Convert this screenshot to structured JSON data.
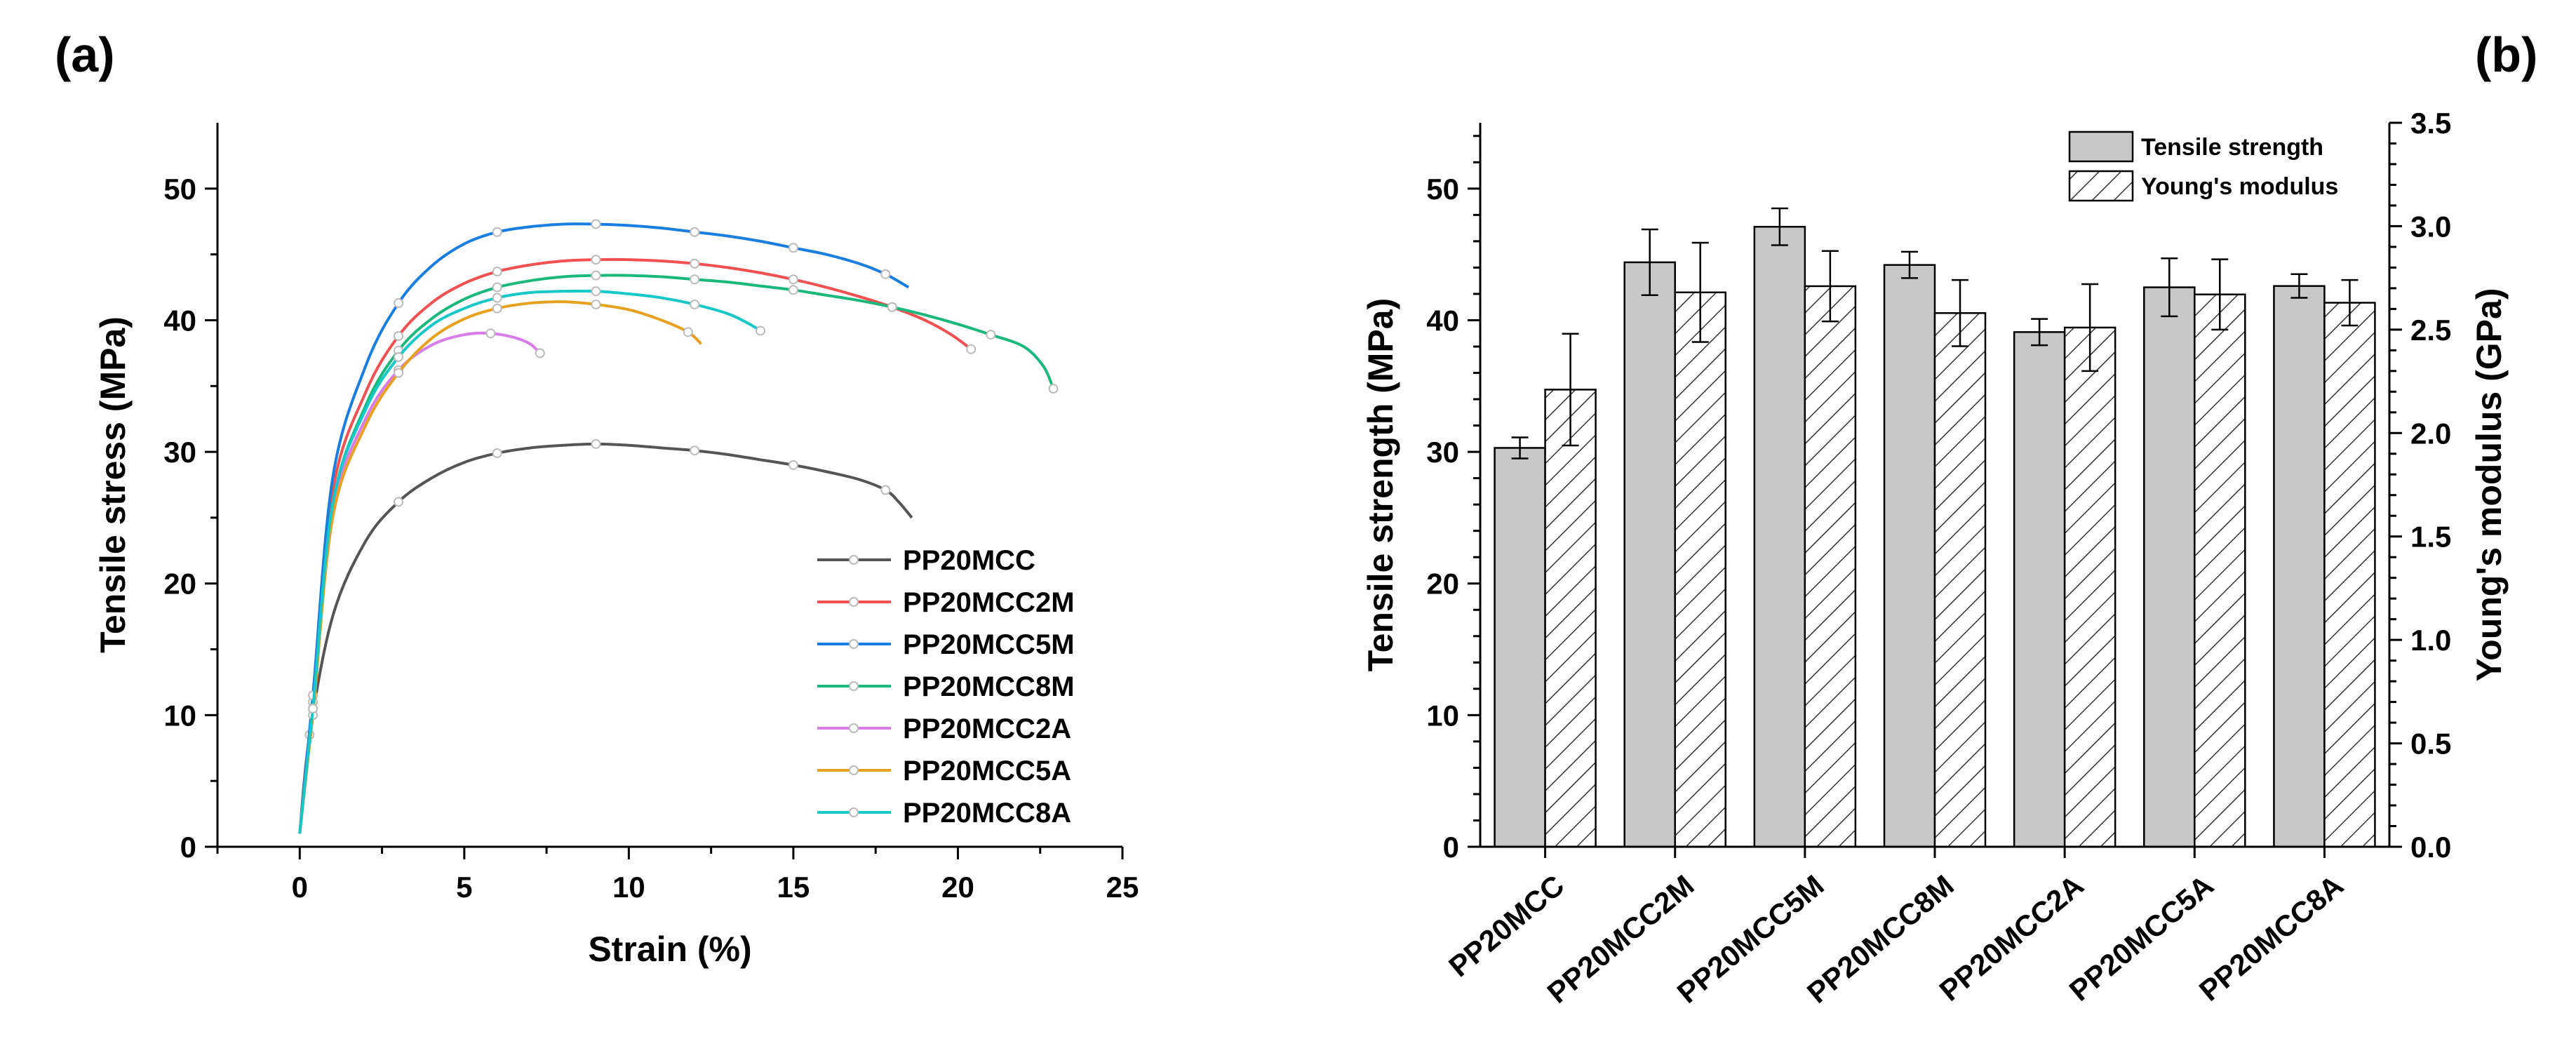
{
  "panel_a_label": "(a)",
  "panel_b_label": "(b)",
  "chart_data": [
    {
      "type": "line",
      "xlabel": "Strain (%)",
      "ylabel": "Tensile stress (MPa)",
      "xlim": [
        -2.5,
        25
      ],
      "ylim": [
        0,
        55
      ],
      "xticks": [
        0,
        5,
        10,
        15,
        20,
        25
      ],
      "yticks": [
        0,
        10,
        20,
        30,
        40,
        50
      ],
      "legend_position": "bottom-right",
      "series": [
        {
          "name": "PP20MCC",
          "color": "#555555",
          "x": [
            0,
            0.3,
            1,
            2,
            3,
            4,
            5,
            6,
            7,
            8,
            9,
            10,
            11,
            12,
            13,
            14,
            15,
            16,
            17,
            17.8,
            18.2,
            18.6
          ],
          "y": [
            1,
            8.5,
            17.5,
            23.2,
            26.2,
            28,
            29.2,
            29.9,
            30.3,
            30.5,
            30.6,
            30.5,
            30.3,
            30.1,
            29.8,
            29.4,
            29.0,
            28.5,
            27.9,
            27.1,
            26.2,
            25
          ]
        },
        {
          "name": "PP20MCC2M",
          "color": "#f05050",
          "x": [
            0,
            0.4,
            1,
            2,
            3,
            4,
            5,
            6,
            7,
            8,
            9,
            10,
            11,
            12,
            13,
            14,
            15,
            16,
            17,
            18,
            19,
            19.8,
            20.4
          ],
          "y": [
            1,
            11,
            27,
            34.5,
            38.8,
            41.3,
            42.8,
            43.7,
            44.2,
            44.5,
            44.6,
            44.6,
            44.5,
            44.3,
            44.0,
            43.6,
            43.1,
            42.5,
            41.8,
            41.0,
            40.0,
            38.9,
            37.8
          ]
        },
        {
          "name": "PP20MCC5M",
          "color": "#1a7ee0",
          "x": [
            0,
            0.4,
            1,
            2,
            3,
            4,
            5,
            6,
            7,
            8,
            9,
            10,
            11,
            12,
            13,
            14,
            15,
            16,
            17,
            17.8,
            18.5
          ],
          "y": [
            1,
            11.5,
            28,
            36.5,
            41.3,
            44.1,
            45.8,
            46.7,
            47.1,
            47.3,
            47.3,
            47.2,
            47.0,
            46.7,
            46.4,
            46.0,
            45.5,
            45.0,
            44.3,
            43.5,
            42.5
          ]
        },
        {
          "name": "PP20MCC8M",
          "color": "#1ab87a",
          "x": [
            0,
            0.4,
            1,
            2,
            3,
            4,
            5,
            6,
            7,
            8,
            9,
            10,
            11,
            12,
            13,
            14,
            15,
            16,
            17,
            18,
            19,
            20,
            21,
            22,
            22.6,
            22.9
          ],
          "y": [
            1,
            10.5,
            26,
            33.5,
            37.7,
            40.1,
            41.6,
            42.5,
            43.0,
            43.3,
            43.4,
            43.4,
            43.3,
            43.1,
            42.9,
            42.6,
            42.3,
            41.9,
            41.5,
            41.0,
            40.4,
            39.7,
            38.9,
            38.0,
            36.5,
            34.8
          ]
        },
        {
          "name": "PP20MCC2A",
          "color": "#d77ce8",
          "x": [
            0,
            0.4,
            1,
            2,
            3,
            4,
            5,
            5.8,
            6.5,
            7.0,
            7.3
          ],
          "y": [
            1,
            10.5,
            25.5,
            32.5,
            36.2,
            38.1,
            38.9,
            39.0,
            38.7,
            38.2,
            37.5
          ]
        },
        {
          "name": "PP20MCC5A",
          "color": "#e8a020",
          "x": [
            0,
            0.4,
            1,
            2,
            3,
            4,
            5,
            6,
            7,
            8,
            9,
            10,
            11,
            11.8,
            12.2
          ],
          "y": [
            1,
            10,
            25,
            32.0,
            36.0,
            38.6,
            40.1,
            40.9,
            41.3,
            41.4,
            41.2,
            40.8,
            40.0,
            39.1,
            38.2
          ]
        },
        {
          "name": "PP20MCC8A",
          "color": "#18c8c8",
          "x": [
            0,
            0.4,
            1,
            2,
            3,
            4,
            5,
            6,
            7,
            8,
            9,
            10,
            11,
            12,
            13,
            13.6,
            14.0
          ],
          "y": [
            1,
            10.5,
            26,
            33.2,
            37.2,
            39.6,
            40.9,
            41.7,
            42.1,
            42.2,
            42.2,
            42.0,
            41.7,
            41.2,
            40.5,
            39.8,
            39.2
          ]
        }
      ]
    },
    {
      "type": "bar",
      "categories": [
        "PP20MCC",
        "PP20MCC2M",
        "PP20MCC5M",
        "PP20MCC8M",
        "PP20MCC2A",
        "PP20MCC5A",
        "PP20MCC8A"
      ],
      "ylabel": "Tensile strength (MPa)",
      "y2label": "Young's modulus (GPa)",
      "ylim": [
        0,
        55
      ],
      "y2lim": [
        0,
        3.5
      ],
      "yticks": [
        0,
        10,
        20,
        30,
        40,
        50
      ],
      "y2ticks": [
        0.0,
        0.5,
        1.0,
        1.5,
        2.0,
        2.5,
        3.0,
        3.5
      ],
      "y2tick_labels": [
        "0.0",
        "0.5",
        "1.0",
        "1.5",
        "2.0",
        "2.5",
        "3.0",
        "3.5"
      ],
      "legend_position": "top-right",
      "series": [
        {
          "name": "Tensile strength",
          "axis": "left",
          "fill": "#c8c8c8",
          "values": [
            30.3,
            44.4,
            47.1,
            44.2,
            39.1,
            42.5,
            42.6
          ],
          "errors": [
            0.8,
            2.5,
            1.4,
            1.0,
            1.0,
            2.2,
            0.9
          ]
        },
        {
          "name": "Young's modulus",
          "axis": "right",
          "fill": "hatch",
          "values": [
            2.21,
            2.68,
            2.71,
            2.58,
            2.51,
            2.67,
            2.63
          ],
          "errors": [
            0.27,
            0.24,
            0.17,
            0.16,
            0.21,
            0.17,
            0.11
          ]
        }
      ]
    }
  ]
}
